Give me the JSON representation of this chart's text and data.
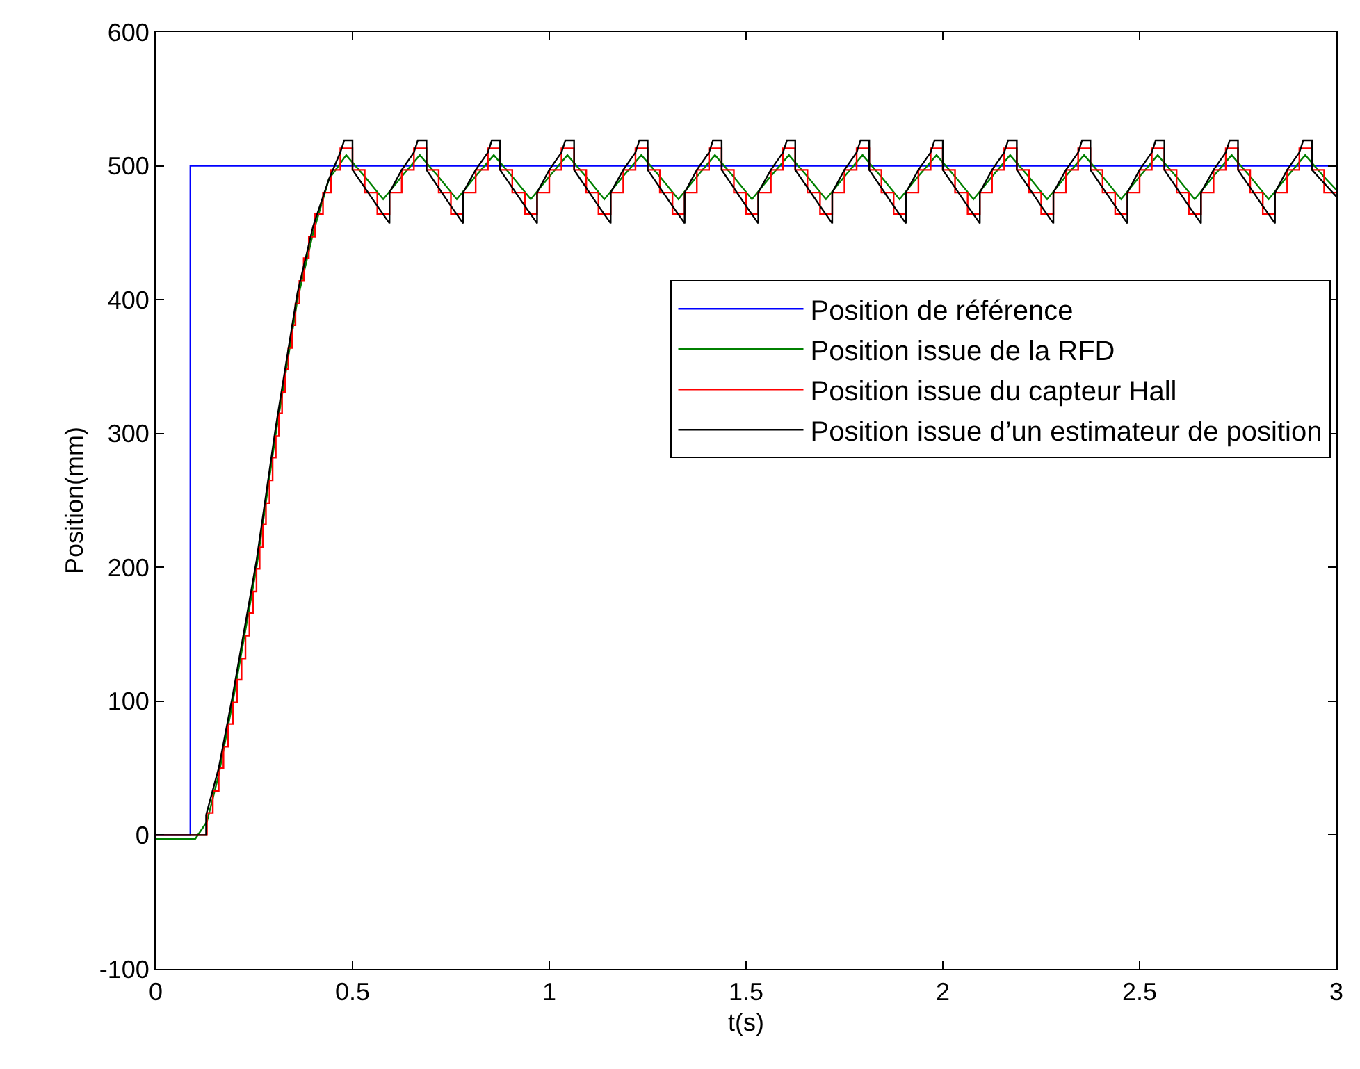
{
  "chart_data": {
    "type": "line",
    "xlabel": "t(s)",
    "ylabel": "Position(mm)",
    "xlim": [
      0,
      3
    ],
    "xticks": [
      0,
      0.5,
      1,
      1.5,
      2,
      2.5,
      3
    ],
    "ylim": [
      -100,
      600
    ],
    "yticks": [
      -100,
      0,
      100,
      200,
      300,
      400,
      500,
      600
    ],
    "grid": false,
    "legend": "right",
    "marker": "none",
    "line_style": "solid",
    "series": [
      {
        "name": "Position de référence",
        "color": "#0000ff",
        "x": [
          0,
          0.088,
          0.088,
          3
        ],
        "values": [
          0,
          0,
          500,
          500
        ]
      },
      {
        "name": "Position issue de la RFD",
        "color": "#008000",
        "x": [
          0,
          0.1,
          0.13,
          0.16,
          0.196,
          0.256,
          0.305,
          0.33,
          0.36,
          0.4,
          0.44,
          0.484,
          0.531,
          0.578,
          0.625,
          0.671,
          0.718,
          0.765,
          0.812,
          0.859,
          0.906,
          0.953,
          1.0,
          1.046,
          1.093,
          1.14,
          1.187,
          1.234,
          1.281,
          1.328,
          1.375,
          1.421,
          1.468,
          1.515,
          1.562,
          1.609,
          1.656,
          1.703,
          1.75,
          1.796,
          1.843,
          1.89,
          1.937,
          1.984,
          2.031,
          2.078,
          2.125,
          2.171,
          2.218,
          2.265,
          2.312,
          2.359,
          2.406,
          2.453,
          2.5,
          2.546,
          2.593,
          2.64,
          2.687,
          2.734,
          2.781,
          2.828,
          2.875,
          2.921,
          2.968,
          3.0
        ],
        "values": [
          -3,
          -3,
          10,
          45,
          100,
          200,
          300,
          345,
          400,
          450,
          490,
          508,
          492,
          475,
          492,
          508,
          492,
          475,
          492,
          508,
          492,
          475,
          492,
          508,
          492,
          475,
          492,
          508,
          492,
          475,
          492,
          508,
          492,
          475,
          492,
          508,
          492,
          475,
          492,
          508,
          492,
          475,
          492,
          508,
          492,
          475,
          492,
          508,
          492,
          475,
          492,
          508,
          492,
          475,
          492,
          508,
          492,
          475,
          492,
          508,
          492,
          475,
          492,
          508,
          492,
          482
        ]
      },
      {
        "name": "Position issue du capteur Hall",
        "color": "#ff0000",
        "type": "step",
        "x": [
          0,
          0.13,
          0.145,
          0.16,
          0.172,
          0.184,
          0.196,
          0.207,
          0.218,
          0.228,
          0.238,
          0.247,
          0.256,
          0.264,
          0.272,
          0.28,
          0.289,
          0.297,
          0.305,
          0.313,
          0.321,
          0.329,
          0.337,
          0.346,
          0.355,
          0.365,
          0.376,
          0.389,
          0.405,
          0.425,
          0.445,
          0.469,
          0.5,
          0.531,
          0.563,
          0.594,
          0.625,
          0.656,
          0.688,
          0.719,
          0.75,
          0.781,
          0.813,
          0.844,
          0.875,
          0.906,
          0.938,
          0.969,
          1.0,
          1.031,
          1.063,
          1.094,
          1.125,
          1.156,
          1.188,
          1.219,
          1.25,
          1.281,
          1.313,
          1.344,
          1.375,
          1.406,
          1.438,
          1.469,
          1.5,
          1.531,
          1.563,
          1.594,
          1.625,
          1.656,
          1.688,
          1.719,
          1.75,
          1.781,
          1.813,
          1.844,
          1.875,
          1.906,
          1.938,
          1.969,
          2.0,
          2.031,
          2.063,
          2.094,
          2.125,
          2.156,
          2.188,
          2.219,
          2.25,
          2.281,
          2.313,
          2.344,
          2.375,
          2.406,
          2.438,
          2.469,
          2.5,
          2.531,
          2.563,
          2.594,
          2.625,
          2.656,
          2.688,
          2.719,
          2.75,
          2.781,
          2.813,
          2.844,
          2.875,
          2.906,
          2.938,
          2.969,
          3.0
        ],
        "values": [
          0,
          16.5,
          33,
          50,
          66,
          83,
          99,
          116,
          132,
          149,
          166,
          182,
          199,
          215,
          232,
          248,
          265,
          282,
          298,
          315,
          331,
          348,
          364,
          381,
          397,
          414,
          431,
          447,
          464,
          480,
          497,
          513,
          497,
          480,
          464,
          480,
          497,
          513,
          497,
          480,
          464,
          480,
          497,
          513,
          497,
          480,
          464,
          480,
          497,
          513,
          497,
          480,
          464,
          480,
          497,
          513,
          497,
          480,
          464,
          480,
          497,
          513,
          497,
          480,
          464,
          480,
          497,
          513,
          497,
          480,
          464,
          480,
          497,
          513,
          497,
          480,
          464,
          480,
          497,
          513,
          497,
          480,
          464,
          480,
          497,
          513,
          497,
          480,
          464,
          480,
          497,
          513,
          497,
          480,
          464,
          480,
          497,
          513,
          497,
          480,
          464,
          480,
          497,
          513,
          497,
          480,
          464,
          480,
          497,
          513,
          497,
          480,
          480
        ]
      },
      {
        "name": "Position issue d’un estimateur de position",
        "color": "#000000",
        "x": [
          0,
          0.128,
          0.128,
          0.16,
          0.196,
          0.256,
          0.305,
          0.36,
          0.4,
          0.44,
          0.469,
          0.479,
          0.5,
          0.5,
          0.563,
          0.594,
          0.594,
          0.625,
          0.656,
          0.666,
          0.688,
          0.688,
          0.75,
          0.781,
          0.781,
          0.813,
          0.844,
          0.854,
          0.875,
          0.875,
          0.938,
          0.969,
          0.969,
          1.0,
          1.031,
          1.041,
          1.063,
          1.063,
          1.125,
          1.156,
          1.156,
          1.188,
          1.219,
          1.229,
          1.25,
          1.25,
          1.313,
          1.344,
          1.344,
          1.375,
          1.406,
          1.416,
          1.438,
          1.438,
          1.5,
          1.531,
          1.531,
          1.563,
          1.594,
          1.604,
          1.625,
          1.625,
          1.688,
          1.719,
          1.719,
          1.75,
          1.781,
          1.791,
          1.813,
          1.813,
          1.875,
          1.906,
          1.906,
          1.938,
          1.969,
          1.979,
          2.0,
          2.0,
          2.063,
          2.094,
          2.094,
          2.125,
          2.156,
          2.166,
          2.188,
          2.188,
          2.25,
          2.281,
          2.281,
          2.313,
          2.344,
          2.354,
          2.375,
          2.375,
          2.438,
          2.469,
          2.469,
          2.5,
          2.531,
          2.541,
          2.563,
          2.563,
          2.625,
          2.656,
          2.656,
          2.688,
          2.719,
          2.729,
          2.75,
          2.75,
          2.813,
          2.844,
          2.844,
          2.875,
          2.906,
          2.916,
          2.938,
          2.938,
          3.0
        ],
        "values": [
          0,
          0,
          15,
          50,
          105,
          205,
          305,
          405,
          455,
          490,
          510,
          519,
          519,
          497,
          470,
          457,
          480,
          497,
          510,
          519,
          519,
          497,
          470,
          457,
          480,
          497,
          510,
          519,
          519,
          497,
          470,
          457,
          480,
          497,
          510,
          519,
          519,
          497,
          470,
          457,
          480,
          497,
          510,
          519,
          519,
          497,
          470,
          457,
          480,
          497,
          510,
          519,
          519,
          497,
          470,
          457,
          480,
          497,
          510,
          519,
          519,
          497,
          470,
          457,
          480,
          497,
          510,
          519,
          519,
          497,
          470,
          457,
          480,
          497,
          510,
          519,
          519,
          497,
          470,
          457,
          480,
          497,
          510,
          519,
          519,
          497,
          470,
          457,
          480,
          497,
          510,
          519,
          519,
          497,
          470,
          457,
          480,
          497,
          510,
          519,
          519,
          497,
          470,
          457,
          480,
          497,
          510,
          519,
          519,
          497,
          470,
          457,
          480,
          497,
          510,
          519,
          519,
          497,
          477
        ]
      }
    ]
  }
}
